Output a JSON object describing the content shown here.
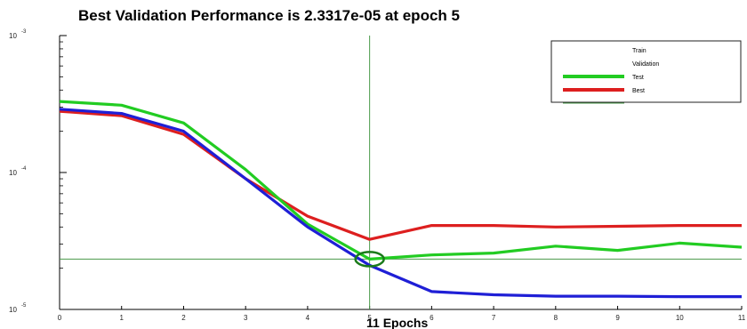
{
  "chart_data": {
    "type": "line",
    "title": "Best Validation Performance is 2.3317e-05 at epoch 5",
    "xlabel": "11 Epochs",
    "ylabel": "",
    "x_ticks": [
      "0",
      "1",
      "2",
      "3",
      "4",
      "5",
      "6",
      "7",
      "8",
      "9",
      "10",
      "11"
    ],
    "y_ticks": [
      {
        "base": "10",
        "exponent": "-3",
        "value": 0.001
      },
      {
        "base": "10",
        "exponent": "-4",
        "value": 0.0001
      },
      {
        "base": "10",
        "exponent": "-5",
        "value": 1e-05
      }
    ],
    "y_scale": "log",
    "xlim": [
      0,
      11
    ],
    "ylim": [
      1e-05,
      0.001
    ],
    "x": [
      0,
      1,
      2,
      3,
      4,
      5,
      6,
      7,
      8,
      9,
      10,
      11
    ],
    "series": [
      {
        "name": "Train",
        "color": "#1f1fd6",
        "values": [
          0.00029,
          0.00027,
          0.0002,
          9e-05,
          4e-05,
          2.1e-05,
          1.35e-05,
          1.28e-05,
          1.25e-05,
          1.25e-05,
          1.24e-05,
          1.24e-05
        ]
      },
      {
        "name": "Validation",
        "color": "#22cc22",
        "values": [
          0.00033,
          0.00031,
          0.00023,
          0.000105,
          4.2e-05,
          2.33e-05,
          2.5e-05,
          2.58e-05,
          2.9e-05,
          2.7e-05,
          3.05e-05,
          2.85e-05
        ]
      },
      {
        "name": "Test",
        "color": "#dd1f1f",
        "values": [
          0.00028,
          0.00026,
          0.00019,
          9e-05,
          4.8e-05,
          3.25e-05,
          4.1e-05,
          4.1e-05,
          4e-05,
          4.05e-05,
          4.1e-05,
          4.1e-05
        ]
      }
    ],
    "best": {
      "name": "Best",
      "epoch": 5,
      "value": 2.33e-05,
      "color": "#4a9a4a"
    },
    "legend": {
      "placement": "top-right",
      "entries": [
        {
          "label": "Train",
          "color": "#1f1fd6"
        },
        {
          "label": "Validation",
          "color": "#22cc22"
        },
        {
          "label": "Test",
          "color": "#dd1f1f"
        },
        {
          "label": "Best",
          "color": "#4a9a4a"
        }
      ]
    }
  }
}
